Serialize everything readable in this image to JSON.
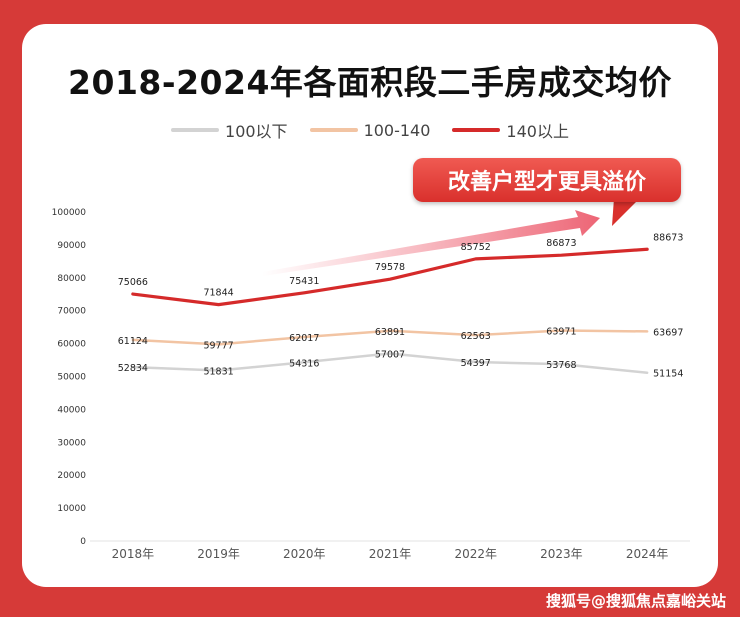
{
  "watermark": "搜狐号@搜狐焦点嘉峪关站",
  "callout": "改善户型才更具溢价",
  "chart_data": {
    "type": "line",
    "title": "2018-2024年各面积段二手房成交均价",
    "categories": [
      "2018年",
      "2019年",
      "2020年",
      "2021年",
      "2022年",
      "2023年",
      "2024年"
    ],
    "ylim": [
      0,
      100000
    ],
    "yticks": [
      0,
      10000,
      20000,
      30000,
      40000,
      50000,
      60000,
      70000,
      80000,
      90000,
      100000
    ],
    "grid": false,
    "legend_placement": "top-center",
    "series": [
      {
        "name": "100以下",
        "color": "#d3d3d3",
        "values": [
          52834,
          51831,
          54316,
          57007,
          54397,
          53768,
          51154
        ]
      },
      {
        "name": "100-140",
        "color": "#f2c4a3",
        "values": [
          61124,
          59777,
          62017,
          63891,
          62563,
          63971,
          63697
        ]
      },
      {
        "name": "140以上",
        "color": "#d52a2a",
        "values": [
          75066,
          71844,
          75431,
          79578,
          85752,
          86873,
          88673
        ]
      }
    ]
  }
}
